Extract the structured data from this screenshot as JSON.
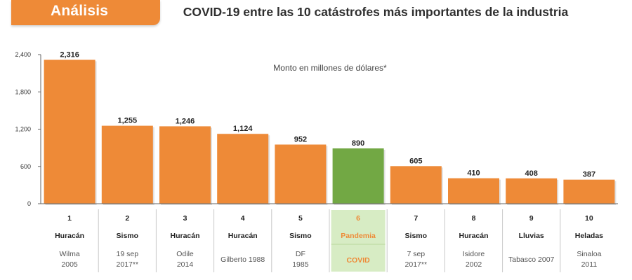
{
  "header": {
    "tag": "Análisis"
  },
  "chart_data": {
    "type": "bar",
    "title": "COVID-19 entre las 10 catástrofes más importantes de la industria",
    "subtitle": "Monto en millones de dólares*",
    "ylim": [
      0,
      2400
    ],
    "yticks": [
      "0",
      "600",
      "1,200",
      "1,800",
      "2,400"
    ],
    "bar_color": "#ee8a37",
    "highlight_color": "#72a844",
    "highlight_index": 5,
    "categories": [
      {
        "rank": "1",
        "type": "Huracán",
        "detail": [
          "Wilma",
          "2005"
        ]
      },
      {
        "rank": "2",
        "type": "Sismo",
        "detail": [
          "19 sep",
          "2017**"
        ]
      },
      {
        "rank": "3",
        "type": "Huracán",
        "detail": [
          "Odile",
          "2014"
        ]
      },
      {
        "rank": "4",
        "type": "Huracán",
        "detail": [
          "Gilberto 1988"
        ]
      },
      {
        "rank": "5",
        "type": "Sismo",
        "detail": [
          "DF",
          "1985"
        ]
      },
      {
        "rank": "6",
        "type": "Pandemia",
        "detail": [
          "COVID"
        ]
      },
      {
        "rank": "7",
        "type": "Sismo",
        "detail": [
          "7 sep",
          "2017**"
        ]
      },
      {
        "rank": "8",
        "type": "Huracán",
        "detail": [
          "Isidore",
          "2002"
        ]
      },
      {
        "rank": "9",
        "type": "Lluvias",
        "detail": [
          "Tabasco 2007"
        ]
      },
      {
        "rank": "10",
        "type": "Heladas",
        "detail": [
          "Sinaloa",
          "2011"
        ]
      }
    ],
    "values": [
      2316,
      1255,
      1246,
      1124,
      952,
      890,
      605,
      410,
      408,
      387
    ],
    "value_labels": [
      "2,316",
      "1,255",
      "1,246",
      "1,124",
      "952",
      "890",
      "605",
      "410",
      "408",
      "387"
    ]
  }
}
